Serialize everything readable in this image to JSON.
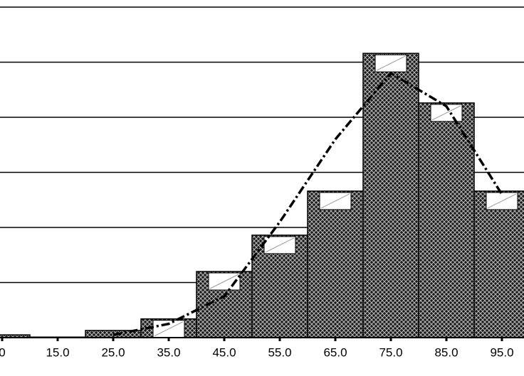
{
  "chart_data": {
    "type": "bar",
    "categories": [
      "0",
      "15.0",
      "25.0",
      "35.0",
      "45.0",
      "55.0",
      "65.0",
      "75.0",
      "85.0",
      "95.0"
    ],
    "series": [
      {
        "type": "bar",
        "color": "#1a1a1a",
        "values": [
          0.05,
          0.01,
          0.13,
          0.34,
          1.2,
          1.86,
          2.66,
          5.16,
          4.26,
          2.66
        ]
      },
      {
        "type": "line",
        "color": "#000000",
        "values": [
          null,
          null,
          0.05,
          0.25,
          0.75,
          2.1,
          3.6,
          4.8,
          4.2,
          2.6
        ]
      }
    ],
    "ylim": [
      0,
      6
    ],
    "yticks": [
      0,
      1,
      2,
      3,
      4,
      5,
      6
    ],
    "grid": true
  }
}
